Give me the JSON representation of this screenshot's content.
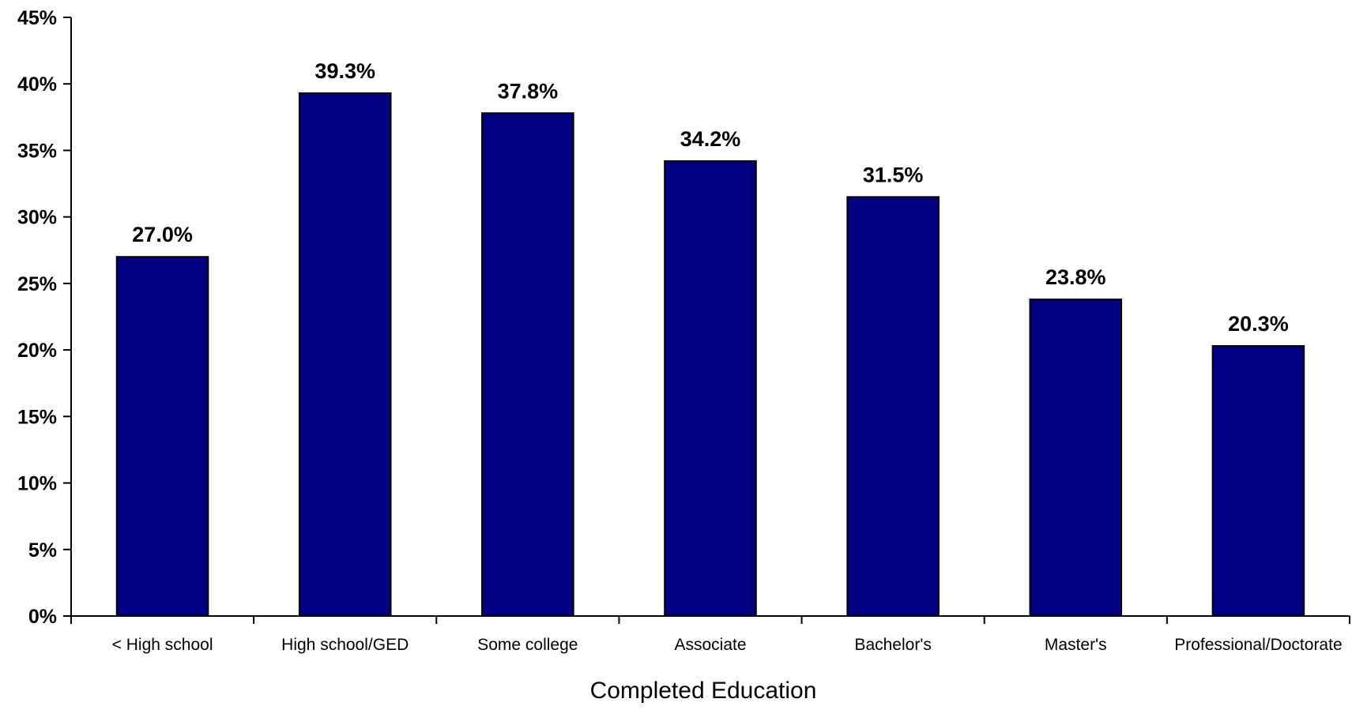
{
  "chart_data": {
    "type": "bar",
    "categories": [
      "< High school",
      "High school/GED",
      "Some college",
      "Associate",
      "Bachelor's",
      "Master's",
      "Professional/Doctorate"
    ],
    "values": [
      27.0,
      39.3,
      37.8,
      34.2,
      31.5,
      23.8,
      20.3
    ],
    "data_labels": [
      "27.0%",
      "39.3%",
      "37.8%",
      "34.2%",
      "31.5%",
      "23.8%",
      "20.3%"
    ],
    "xlabel": "Completed Education",
    "ylabel": "",
    "ylim": [
      0,
      45
    ],
    "yticks": [
      0,
      5,
      10,
      15,
      20,
      25,
      30,
      35,
      40,
      45
    ],
    "ytick_labels": [
      "0%",
      "5%",
      "10%",
      "15%",
      "20%",
      "25%",
      "30%",
      "35%",
      "40%",
      "45%"
    ],
    "grid": false,
    "legend": "none",
    "bar_color": "#000080",
    "bar_outline": "#000000"
  }
}
